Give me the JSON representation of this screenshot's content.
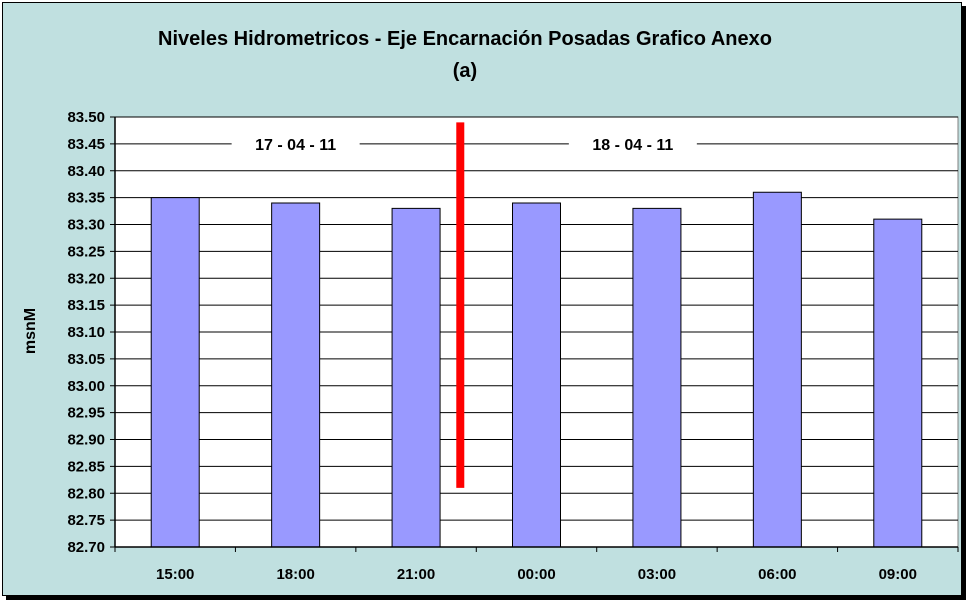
{
  "chart_data": {
    "type": "bar",
    "title": "Niveles Hidrometricos - Eje Encarnación Posadas Grafico Anexo",
    "subtitle": "(a)",
    "ylabel": "msnM",
    "xlabel": "",
    "categories": [
      "15:00",
      "18:00",
      "21:00",
      "00:00",
      "03:00",
      "06:00",
      "09:00"
    ],
    "values": [
      83.35,
      83.34,
      83.33,
      83.34,
      83.33,
      83.36,
      83.31
    ],
    "ylim": [
      82.7,
      83.5
    ],
    "ytick_step": 0.05,
    "yticks": [
      "82.70",
      "82.75",
      "82.80",
      "82.85",
      "82.90",
      "82.95",
      "83.00",
      "83.05",
      "83.10",
      "83.15",
      "83.20",
      "83.25",
      "83.30",
      "83.35",
      "83.40",
      "83.45",
      "83.50"
    ],
    "grid": true,
    "legend": "none",
    "annotations": [
      {
        "text": "17 - 04 - 11"
      },
      {
        "text": "18 - 04 - 11"
      }
    ],
    "divider": {
      "after_category_index": 2,
      "y_from": 82.81,
      "y_to": 83.49
    },
    "colors": {
      "bar": "#9999ff",
      "divider": "#ff0000",
      "plot_bg": "#ffffff",
      "chart_bg": "#c0e0e0"
    }
  }
}
